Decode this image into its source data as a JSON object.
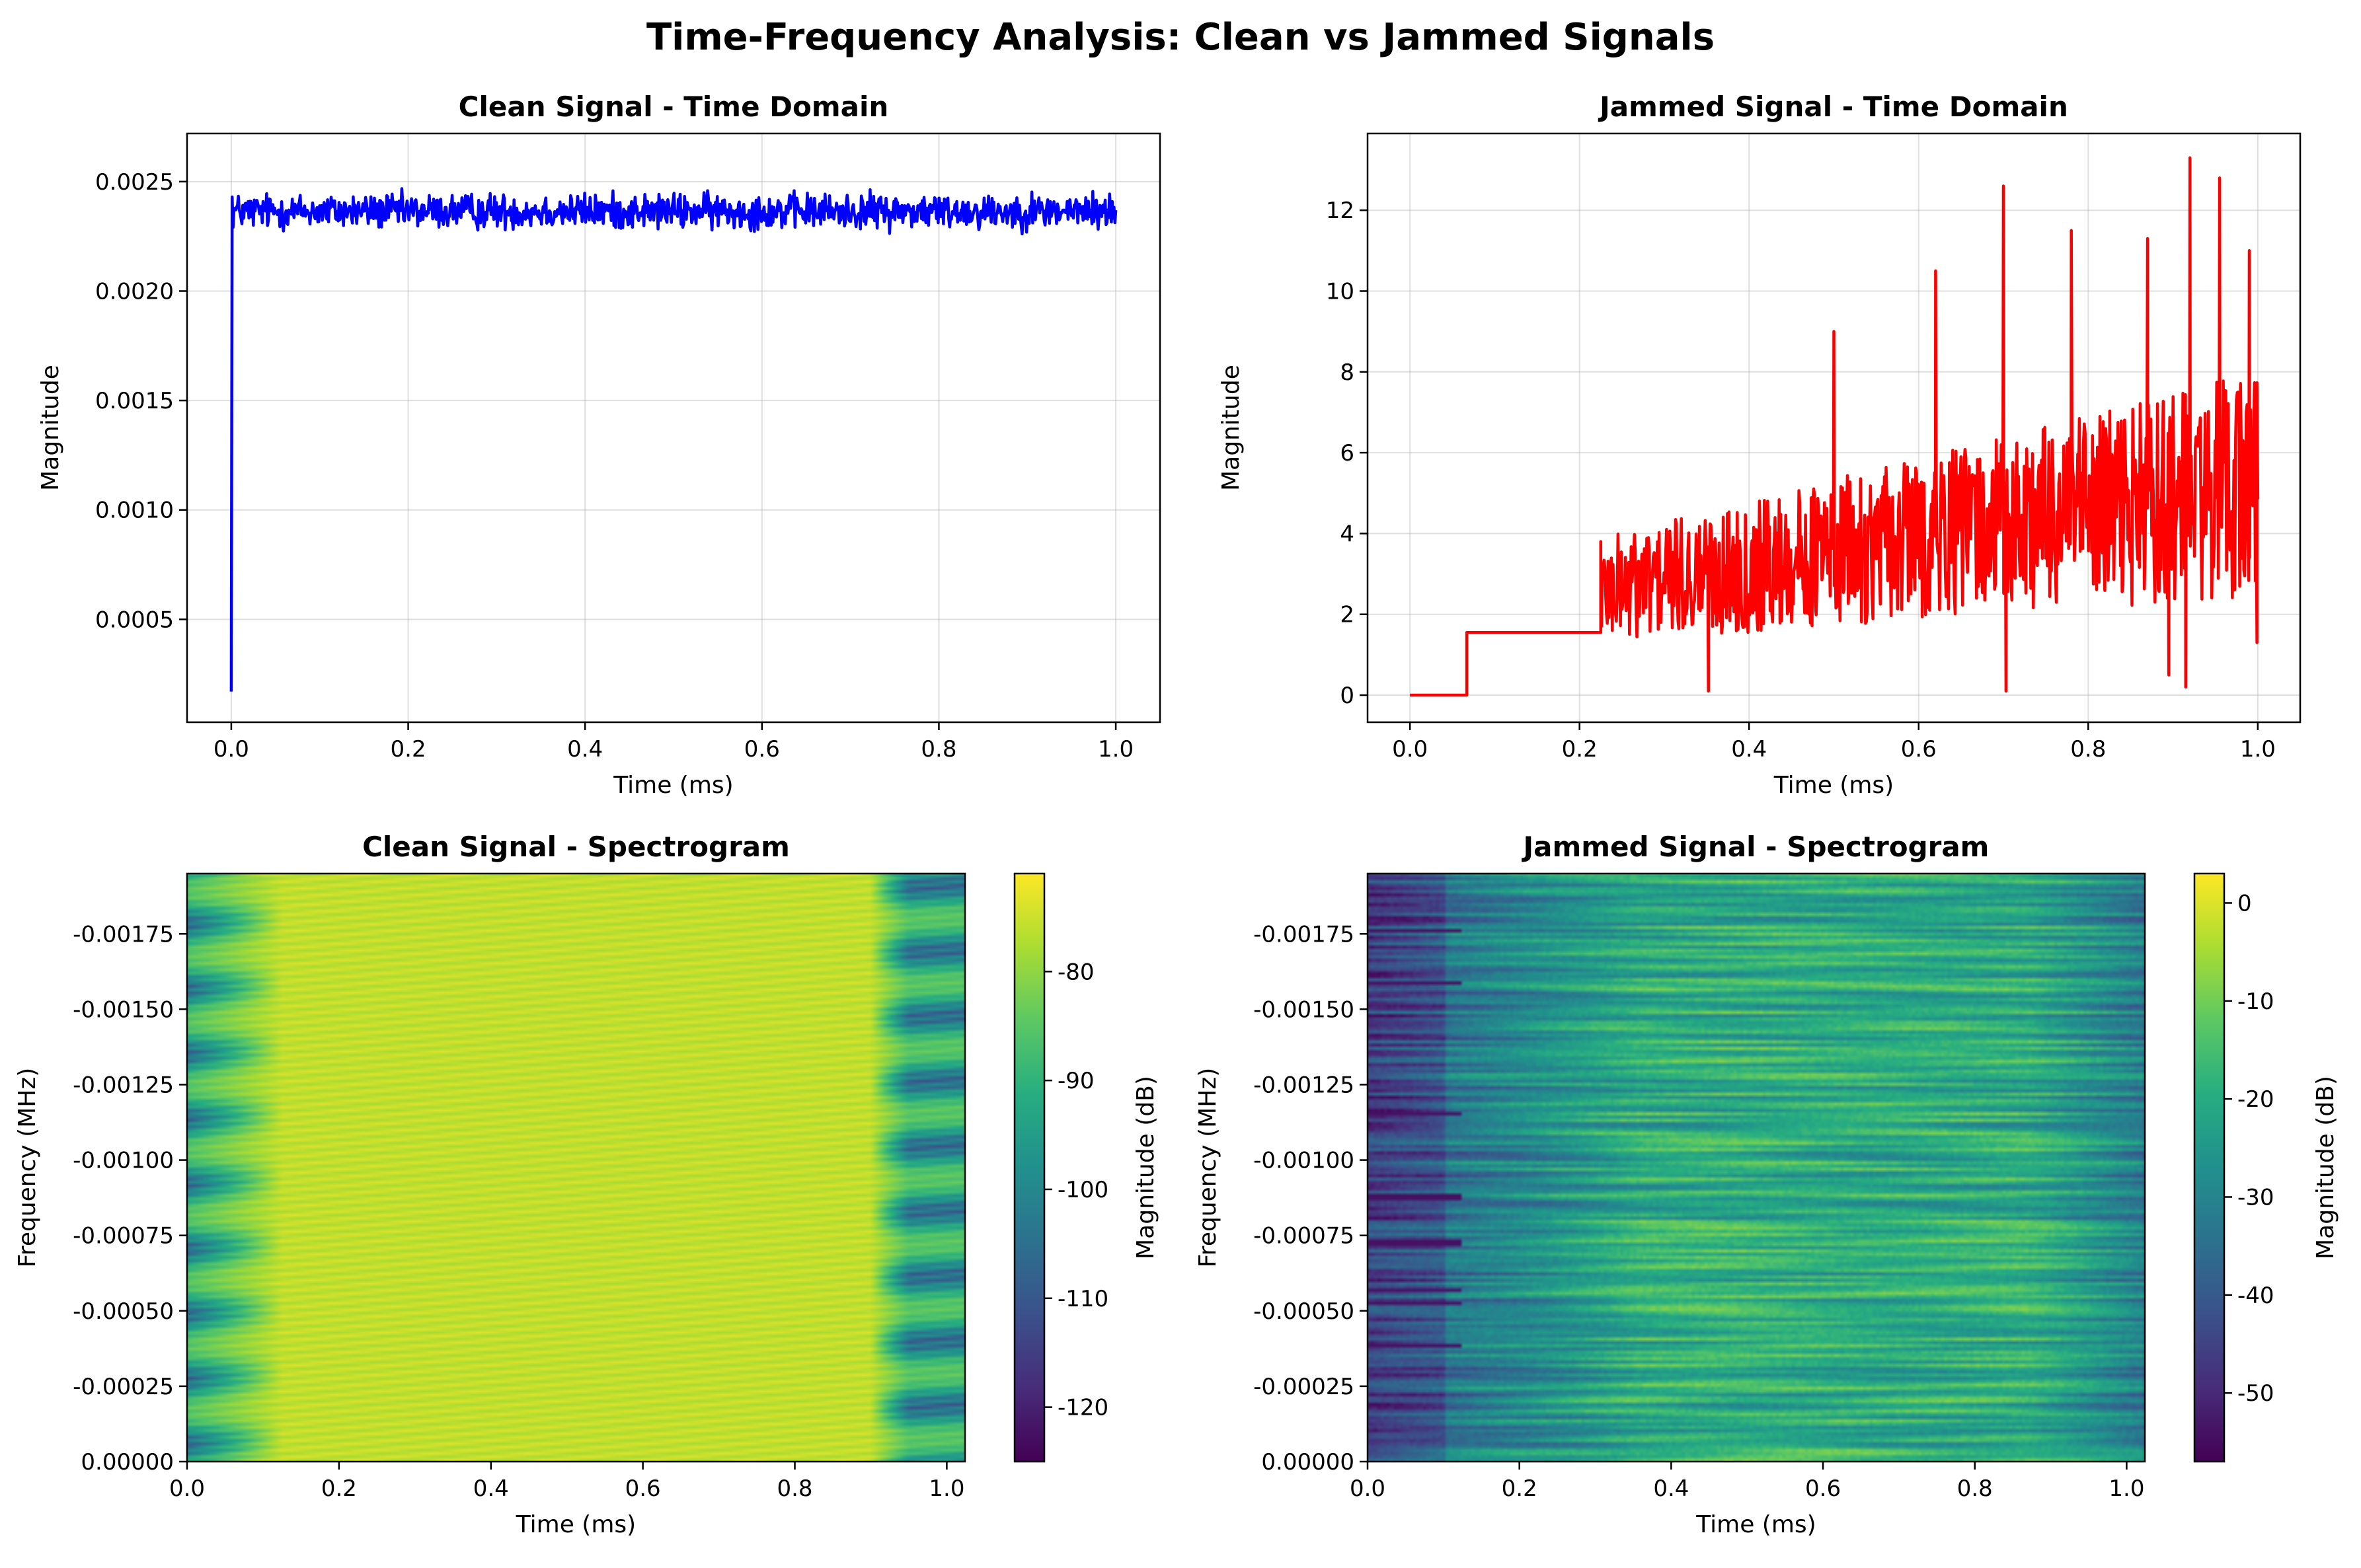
{
  "suptitle": "Time-Frequency Analysis: Clean vs Jammed Signals",
  "chart_data": [
    {
      "type": "line",
      "title": "Clean Signal - Time Domain",
      "xlabel": "Time (ms)",
      "ylabel": "Magnitude",
      "xlim": [
        -0.05,
        1.05
      ],
      "ylim": [
        3e-05,
        0.00272
      ],
      "xticks": [
        0.0,
        0.2,
        0.4,
        0.6,
        0.8,
        1.0
      ],
      "xtick_labels": [
        "0.0",
        "0.2",
        "0.4",
        "0.6",
        "0.8",
        "1.0"
      ],
      "yticks": [
        0.0005,
        0.001,
        0.0015,
        0.002,
        0.0025
      ],
      "ytick_labels": [
        "0.0005",
        "0.0010",
        "0.0015",
        "0.0020",
        "0.0025"
      ],
      "grid": true,
      "series": [
        {
          "color": "#0000ff",
          "start": {
            "x": [
              0.0,
              0.001
            ],
            "y": [
              0.00017,
              0.00243
            ]
          },
          "noise": {
            "x_start": 0.002,
            "x_end": 1.0,
            "n_points": 1000,
            "mean": 0.002365,
            "spread": 5e-05,
            "min": 0.00218,
            "max": 0.00259
          }
        }
      ]
    },
    {
      "type": "line",
      "title": "Jammed Signal - Time Domain",
      "xlabel": "Time (ms)",
      "ylabel": "Magnitude",
      "xlim": [
        -0.05,
        1.05
      ],
      "ylim": [
        -0.67,
        13.9
      ],
      "xticks": [
        0.0,
        0.2,
        0.4,
        0.6,
        0.8,
        1.0
      ],
      "xtick_labels": [
        "0.0",
        "0.2",
        "0.4",
        "0.6",
        "0.8",
        "1.0"
      ],
      "yticks": [
        0,
        2,
        4,
        6,
        8,
        10,
        12
      ],
      "ytick_labels": [
        "0",
        "2",
        "4",
        "6",
        "8",
        "10",
        "12"
      ],
      "grid": true,
      "series": [
        {
          "color": "#ff0000",
          "steps": {
            "x": [
              0.0,
              0.067,
              0.067,
              0.225,
              0.225
            ],
            "y": [
              0.0,
              0.0,
              1.55,
              1.55,
              3.8
            ]
          },
          "noise": {
            "x_start": 0.225,
            "x_end": 1.0,
            "n_points": 800,
            "mean_start": 2.6,
            "mean_end": 5.2,
            "spread_start": 1.3,
            "spread_end": 2.8
          },
          "peaks": [
            {
              "x": 0.352,
              "y": 0.1
            },
            {
              "x": 0.5,
              "y": 9.0
            },
            {
              "x": 0.62,
              "y": 10.5
            },
            {
              "x": 0.7,
              "y": 12.6
            },
            {
              "x": 0.703,
              "y": 0.1
            },
            {
              "x": 0.78,
              "y": 11.5
            },
            {
              "x": 0.87,
              "y": 11.3
            },
            {
              "x": 0.895,
              "y": 0.5
            },
            {
              "x": 0.915,
              "y": 0.2
            },
            {
              "x": 0.92,
              "y": 13.3
            },
            {
              "x": 0.955,
              "y": 12.8
            },
            {
              "x": 0.99,
              "y": 11.0
            },
            {
              "x": 0.999,
              "y": 1.3
            }
          ]
        }
      ]
    },
    {
      "type": "heatmap",
      "title": "Clean Signal - Spectrogram",
      "xlabel": "Time (ms)",
      "ylabel": "Frequency (MHz)",
      "xlim": [
        0.0,
        1.024
      ],
      "ylim": [
        0.0,
        -0.00195
      ],
      "xticks": [
        0.0,
        0.2,
        0.4,
        0.6,
        0.8,
        1.0
      ],
      "xtick_labels": [
        "0.0",
        "0.2",
        "0.4",
        "0.6",
        "0.8",
        "1.0"
      ],
      "yticks": [
        0.0,
        -0.00025,
        -0.0005,
        -0.00075,
        -0.001,
        -0.00125,
        -0.0015,
        -0.00175
      ],
      "ytick_labels": [
        "0.00000",
        "-0.00025",
        "-0.00050",
        "-0.00075",
        "-0.00100",
        "-0.00125",
        "-0.00150",
        "-0.00175"
      ],
      "colormap": "viridis",
      "clim": [
        -125,
        -71
      ],
      "colorbar_label": "Magnitude (dB)",
      "colorbar_ticks": [
        -80,
        -90,
        -100,
        -110,
        -120
      ],
      "colorbar_tick_labels": [
        "-80",
        "-90",
        "-100",
        "-110",
        "-120"
      ],
      "pattern": "clean"
    },
    {
      "type": "heatmap",
      "title": "Jammed Signal - Spectrogram",
      "xlabel": "Time (ms)",
      "ylabel": "Frequency (MHz)",
      "xlim": [
        0.0,
        1.024
      ],
      "ylim": [
        0.0,
        -0.00195
      ],
      "xticks": [
        0.0,
        0.2,
        0.4,
        0.6,
        0.8,
        1.0
      ],
      "xtick_labels": [
        "0.0",
        "0.2",
        "0.4",
        "0.6",
        "0.8",
        "1.0"
      ],
      "yticks": [
        0.0,
        -0.00025,
        -0.0005,
        -0.00075,
        -0.001,
        -0.00125,
        -0.0015,
        -0.00175
      ],
      "ytick_labels": [
        "0.00000",
        "-0.00025",
        "-0.00050",
        "-0.00075",
        "-0.00100",
        "-0.00125",
        "-0.00150",
        "-0.00175"
      ],
      "colormap": "viridis",
      "clim": [
        -57,
        3
      ],
      "colorbar_label": "Magnitude (dB)",
      "colorbar_ticks": [
        0,
        -10,
        -20,
        -30,
        -40,
        -50
      ],
      "colorbar_tick_labels": [
        "0",
        "-10",
        "-20",
        "-30",
        "-40",
        "-50"
      ],
      "pattern": "jammed"
    }
  ]
}
